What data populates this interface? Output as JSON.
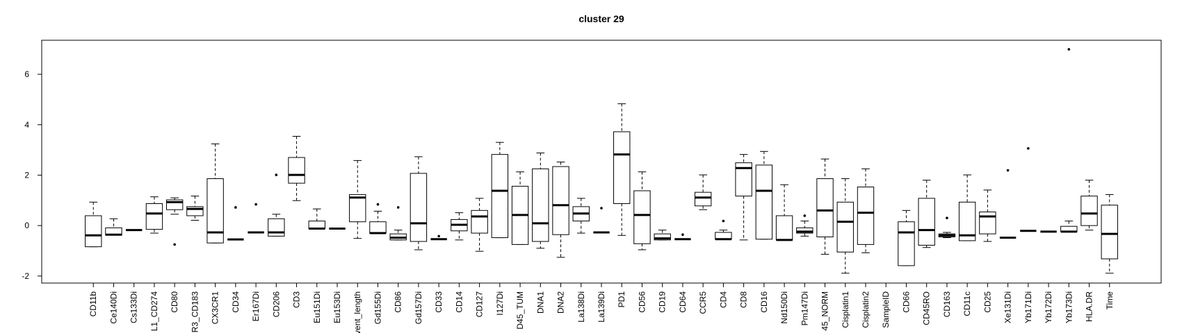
{
  "chart_data": {
    "type": "boxplot",
    "title": "cluster 29",
    "categories": [
      "CD11b",
      "Ce140Di",
      "Cs133Di",
      "L1_CD274",
      "CD80",
      "R3_CD183",
      "CX3CR1",
      "CD34",
      "Er167Di",
      "CD206",
      "CD3",
      "Eu151Di",
      "Eu153Di",
      "vent_length",
      "Gd155Di",
      "CD86",
      "Gd157Di",
      "CD33",
      "CD14",
      "CD127",
      "I127Di",
      "D45_TUM",
      "DNA1",
      "DNA2",
      "La138Di",
      "La139Di",
      "PD1",
      "CD56",
      "CD19",
      "CD64",
      "CCR5",
      "CD4",
      "CD8",
      "CD16",
      "Nd150Di",
      "Pm147Di",
      "45_NORM",
      "Cisplatin1",
      "Cisplatin2",
      "SampleID",
      "CD66",
      "CD45RO",
      "CD163",
      "CD11c",
      "CD25",
      "Xe131Di",
      "Yb171Di",
      "Yb172Di",
      "Yb173Di",
      "HLA.DR",
      "Time"
    ],
    "whislo": [
      -0.84,
      -0.38,
      -0.18,
      -0.3,
      0.45,
      0.21,
      -0.69,
      -0.55,
      -0.27,
      -0.42,
      0.99,
      -0.12,
      -0.12,
      -0.51,
      -0.3,
      -0.57,
      -0.96,
      -0.54,
      -0.57,
      -1.02,
      -0.48,
      -0.75,
      -0.9,
      -1.26,
      -0.3,
      -0.27,
      -0.39,
      -0.96,
      -0.57,
      -0.54,
      0.63,
      -0.54,
      -0.57,
      -0.54,
      -0.57,
      -0.42,
      -1.14,
      -1.89,
      -1.08,
      null,
      -1.59,
      -0.87,
      -0.48,
      -0.6,
      -0.63,
      -0.48,
      -0.21,
      -0.24,
      -0.24,
      -0.18,
      -1.89
    ],
    "q1": [
      -0.84,
      -0.38,
      -0.18,
      -0.15,
      0.63,
      0.39,
      -0.69,
      -0.55,
      -0.27,
      -0.42,
      1.68,
      -0.12,
      -0.12,
      0.15,
      -0.3,
      -0.57,
      -0.63,
      -0.54,
      -0.21,
      -0.3,
      -0.48,
      -0.75,
      -0.63,
      -0.36,
      0.18,
      -0.27,
      0.87,
      -0.72,
      -0.57,
      -0.54,
      0.78,
      -0.54,
      1.17,
      -0.54,
      -0.57,
      -0.3,
      -0.45,
      -1.05,
      -0.75,
      null,
      -1.59,
      -0.78,
      -0.45,
      -0.6,
      -0.33,
      -0.48,
      -0.21,
      -0.24,
      -0.24,
      0.0,
      -1.32
    ],
    "median": [
      -0.39,
      -0.36,
      -0.18,
      0.48,
      0.93,
      0.66,
      -0.27,
      -0.55,
      -0.27,
      -0.27,
      2.01,
      -0.12,
      -0.12,
      1.11,
      -0.3,
      -0.48,
      0.09,
      -0.54,
      0.03,
      0.36,
      1.38,
      0.42,
      0.09,
      0.81,
      0.48,
      -0.27,
      2.82,
      0.42,
      -0.51,
      -0.54,
      1.11,
      -0.54,
      2.28,
      1.38,
      -0.57,
      -0.24,
      0.6,
      0.15,
      0.51,
      null,
      -0.27,
      -0.18,
      -0.39,
      -0.39,
      0.36,
      -0.48,
      -0.21,
      -0.24,
      -0.24,
      0.48,
      -0.33
    ],
    "q3": [
      0.39,
      -0.09,
      -0.18,
      0.87,
      1.02,
      0.75,
      1.86,
      -0.55,
      -0.27,
      0.27,
      2.7,
      0.18,
      -0.12,
      1.23,
      0.15,
      -0.33,
      2.07,
      -0.54,
      0.24,
      0.6,
      2.82,
      1.56,
      2.25,
      2.34,
      0.75,
      -0.27,
      3.72,
      1.38,
      -0.33,
      -0.54,
      1.32,
      -0.27,
      2.49,
      2.4,
      0.39,
      -0.09,
      1.86,
      0.93,
      1.53,
      null,
      0.15,
      1.08,
      -0.33,
      0.93,
      0.54,
      -0.48,
      -0.21,
      -0.24,
      -0.03,
      1.17,
      0.81
    ],
    "whishi": [
      0.93,
      0.27,
      -0.18,
      1.14,
      1.1,
      1.17,
      3.24,
      -0.55,
      -0.27,
      0.45,
      3.54,
      0.66,
      -0.12,
      2.58,
      0.57,
      -0.18,
      2.73,
      -0.54,
      0.51,
      1.08,
      3.3,
      2.13,
      2.88,
      2.52,
      1.08,
      -0.27,
      4.83,
      2.13,
      -0.18,
      -0.54,
      2.01,
      -0.18,
      2.82,
      2.94,
      1.62,
      0.18,
      2.64,
      1.86,
      2.25,
      null,
      0.6,
      1.8,
      -0.27,
      2.01,
      1.41,
      -0.48,
      -0.21,
      -0.24,
      0.18,
      1.8,
      1.23
    ],
    "outliers": [
      [],
      [],
      [],
      [],
      [
        -0.75
      ],
      [],
      [],
      [
        0.72
      ],
      [
        0.84
      ],
      [
        2.01
      ],
      [],
      [],
      [],
      [],
      [
        0.84
      ],
      [
        0.72
      ],
      [],
      [
        -0.42
      ],
      [],
      [],
      [],
      [],
      [],
      [],
      [],
      [
        0.69
      ],
      [],
      [],
      [],
      [
        -0.36
      ],
      [],
      [
        0.18
      ],
      [],
      [],
      [],
      [
        0.39
      ],
      [],
      [],
      [],
      [],
      [],
      [],
      [
        0.3
      ],
      [],
      [],
      [
        2.19
      ],
      [
        3.06
      ],
      [],
      [
        6.99
      ],
      [],
      []
    ],
    "color": "#ffffff",
    "line_color": "#000000",
    "ylim": [
      -2.28,
      7.35
    ],
    "yticks": [
      -2,
      0,
      2,
      4,
      6
    ]
  }
}
